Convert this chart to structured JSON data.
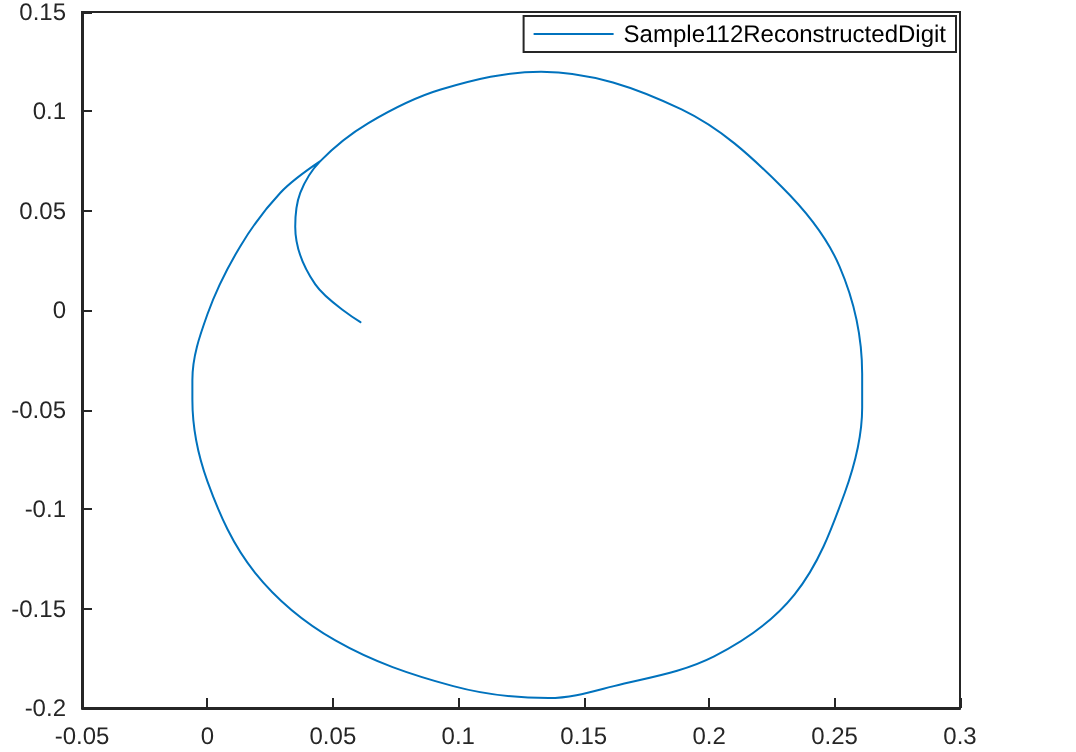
{
  "chart_data": {
    "type": "line",
    "x": [
      0.061,
      0.043,
      0.035,
      0.037,
      0.045,
      0.064,
      0.093,
      0.133,
      0.189,
      0.229,
      0.252,
      0.261,
      0.261,
      0.254,
      0.234,
      0.202,
      0.162,
      0.136,
      0.098,
      0.051,
      0.019,
      0,
      -0.006,
      -0.006,
      0,
      0.013,
      0.029,
      0.045
    ],
    "series": [
      {
        "name": "Sample112ReconstructedDigit",
        "color": "#0072bd",
        "values": [
          -0.006,
          0.013,
          0.042,
          0.059,
          0.075,
          0.094,
          0.111,
          0.12,
          0.101,
          0.062,
          0.022,
          -0.032,
          -0.049,
          -0.092,
          -0.143,
          -0.174,
          -0.189,
          -0.195,
          -0.189,
          -0.166,
          -0.132,
          -0.086,
          -0.045,
          -0.035,
          -0.002,
          0.032,
          0.059,
          0.075
        ]
      }
    ],
    "xlim": [
      -0.05,
      0.3
    ],
    "xticks": [
      -0.05,
      0,
      0.05,
      0.1,
      0.15,
      0.2,
      0.25,
      0.3
    ],
    "ylim": [
      -0.2,
      0.15
    ],
    "yticks": [
      -0.2,
      -0.15,
      -0.1,
      -0.05,
      0,
      0.05,
      0.1,
      0.15
    ],
    "legend": "top right",
    "grid": false,
    "marker": "none",
    "line_style": "solid"
  }
}
